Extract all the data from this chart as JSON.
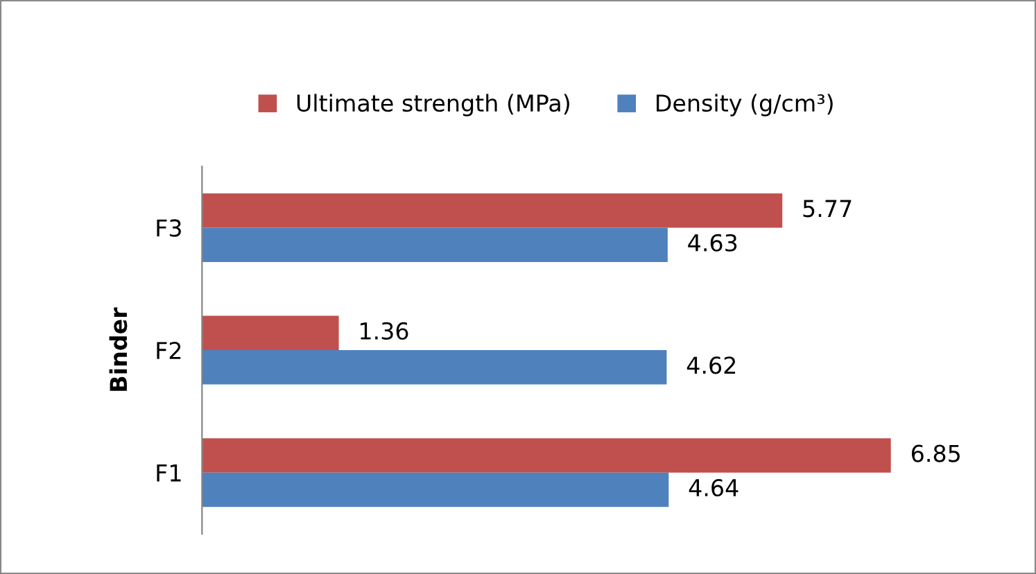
{
  "chart_data": {
    "type": "bar",
    "orientation": "horizontal",
    "ylabel": "Binder",
    "categories": [
      "F3",
      "F2",
      "F1"
    ],
    "series": [
      {
        "name": "Ultimate strength (MPa)",
        "color": "#c0504d",
        "values": [
          5.77,
          1.36,
          6.85
        ]
      },
      {
        "name": "Density (g/cm³)",
        "color": "#4f81bd",
        "values": [
          4.63,
          4.62,
          4.64
        ]
      }
    ],
    "tick_labels": "y",
    "data_labels": true,
    "legend": "top",
    "grid": false
  }
}
